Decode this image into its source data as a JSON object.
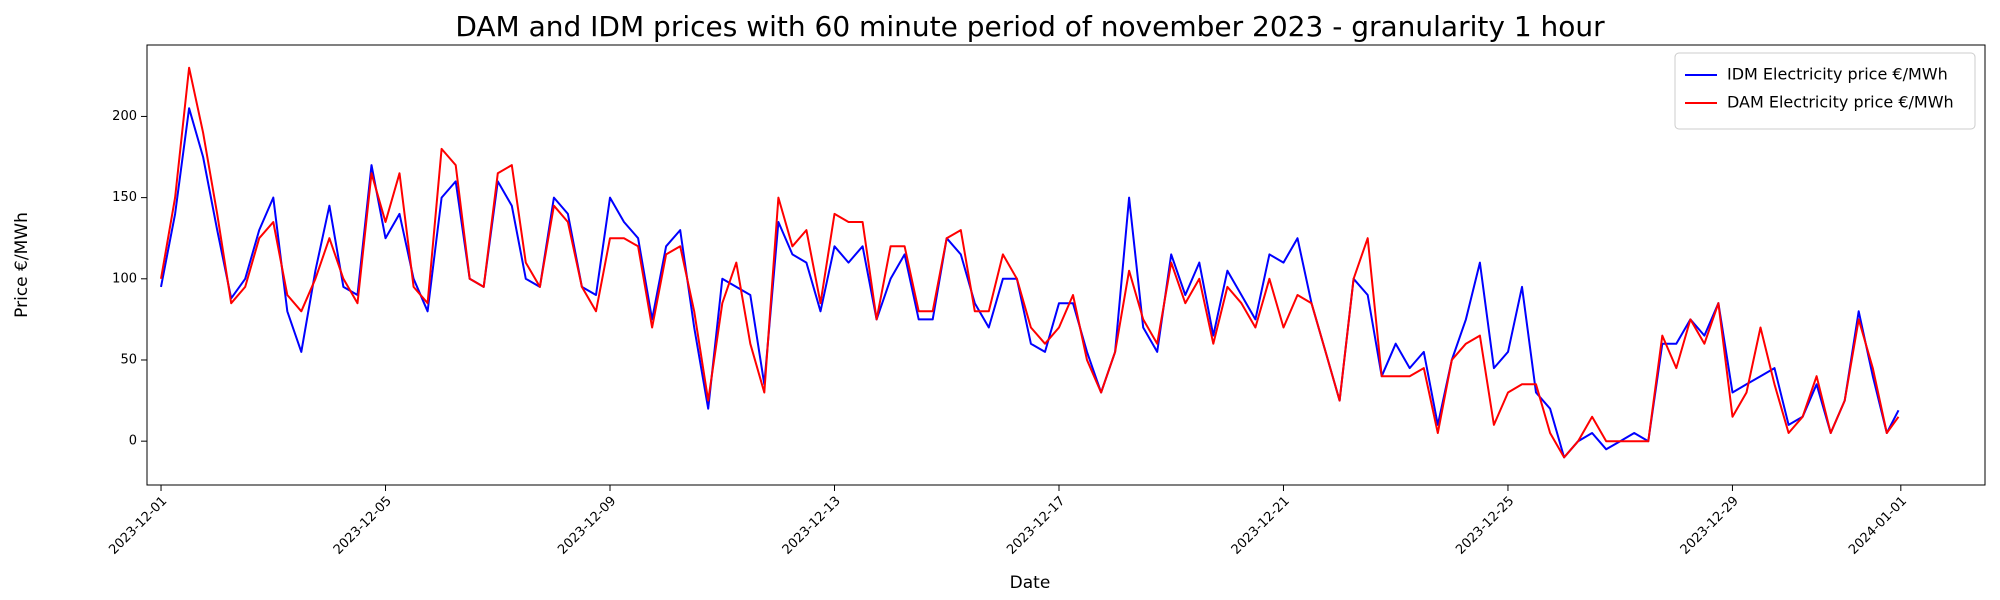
{
  "chart_data": {
    "type": "line",
    "title": "DAM and IDM prices with 60 minute period of november 2023  - granularity 1 hour",
    "x_label": "Date",
    "y_label": "Price €/MWh",
    "x": [
      "2023-12-01T00:00",
      "2023-12-01T06:00",
      "2023-12-01T12:00",
      "2023-12-01T18:00",
      "2023-12-02T00:00",
      "2023-12-02T06:00",
      "2023-12-02T12:00",
      "2023-12-02T18:00",
      "2023-12-03T00:00",
      "2023-12-03T06:00",
      "2023-12-03T12:00",
      "2023-12-03T18:00",
      "2023-12-04T00:00",
      "2023-12-04T06:00",
      "2023-12-04T12:00",
      "2023-12-04T18:00",
      "2023-12-05T00:00",
      "2023-12-05T06:00",
      "2023-12-05T12:00",
      "2023-12-05T18:00",
      "2023-12-06T00:00",
      "2023-12-06T06:00",
      "2023-12-06T12:00",
      "2023-12-06T18:00",
      "2023-12-07T00:00",
      "2023-12-07T06:00",
      "2023-12-07T12:00",
      "2023-12-07T18:00",
      "2023-12-08T00:00",
      "2023-12-08T06:00",
      "2023-12-08T12:00",
      "2023-12-08T18:00",
      "2023-12-09T00:00",
      "2023-12-09T06:00",
      "2023-12-09T12:00",
      "2023-12-09T18:00",
      "2023-12-10T00:00",
      "2023-12-10T06:00",
      "2023-12-10T12:00",
      "2023-12-10T18:00",
      "2023-12-11T00:00",
      "2023-12-11T06:00",
      "2023-12-11T12:00",
      "2023-12-11T18:00",
      "2023-12-12T00:00",
      "2023-12-12T06:00",
      "2023-12-12T12:00",
      "2023-12-12T18:00",
      "2023-12-13T00:00",
      "2023-12-13T06:00",
      "2023-12-13T12:00",
      "2023-12-13T18:00",
      "2023-12-14T00:00",
      "2023-12-14T06:00",
      "2023-12-14T12:00",
      "2023-12-14T18:00",
      "2023-12-15T00:00",
      "2023-12-15T06:00",
      "2023-12-15T12:00",
      "2023-12-15T18:00",
      "2023-12-16T00:00",
      "2023-12-16T06:00",
      "2023-12-16T12:00",
      "2023-12-16T18:00",
      "2023-12-17T00:00",
      "2023-12-17T06:00",
      "2023-12-17T12:00",
      "2023-12-17T18:00",
      "2023-12-18T00:00",
      "2023-12-18T06:00",
      "2023-12-18T12:00",
      "2023-12-18T18:00",
      "2023-12-19T00:00",
      "2023-12-19T06:00",
      "2023-12-19T12:00",
      "2023-12-19T18:00",
      "2023-12-20T00:00",
      "2023-12-20T06:00",
      "2023-12-20T12:00",
      "2023-12-20T18:00",
      "2023-12-21T00:00",
      "2023-12-21T06:00",
      "2023-12-21T12:00",
      "2023-12-21T18:00",
      "2023-12-22T00:00",
      "2023-12-22T06:00",
      "2023-12-22T12:00",
      "2023-12-22T18:00",
      "2023-12-23T00:00",
      "2023-12-23T06:00",
      "2023-12-23T12:00",
      "2023-12-23T18:00",
      "2023-12-24T00:00",
      "2023-12-24T06:00",
      "2023-12-24T12:00",
      "2023-12-24T18:00",
      "2023-12-25T00:00",
      "2023-12-25T06:00",
      "2023-12-25T12:00",
      "2023-12-25T18:00",
      "2023-12-26T00:00",
      "2023-12-26T06:00",
      "2023-12-26T12:00",
      "2023-12-26T18:00",
      "2023-12-27T00:00",
      "2023-12-27T06:00",
      "2023-12-27T12:00",
      "2023-12-27T18:00",
      "2023-12-28T00:00",
      "2023-12-28T06:00",
      "2023-12-28T12:00",
      "2023-12-28T18:00",
      "2023-12-29T00:00",
      "2023-12-29T06:00",
      "2023-12-29T12:00",
      "2023-12-29T18:00",
      "2023-12-30T00:00",
      "2023-12-30T06:00",
      "2023-12-30T12:00",
      "2023-12-30T18:00",
      "2023-12-31T00:00",
      "2023-12-31T06:00",
      "2023-12-31T12:00",
      "2023-12-31T18:00",
      "2023-12-31T23:00"
    ],
    "series": [
      {
        "name": "IDM Electricity price €/MWh",
        "color": "#0000ff",
        "values": [
          95,
          140,
          205,
          175,
          130,
          88,
          100,
          130,
          150,
          80,
          55,
          105,
          145,
          95,
          90,
          170,
          125,
          140,
          100,
          80,
          150,
          160,
          100,
          95,
          160,
          145,
          100,
          95,
          150,
          140,
          95,
          90,
          150,
          135,
          125,
          75,
          120,
          130,
          70,
          20,
          100,
          95,
          90,
          35,
          135,
          115,
          110,
          80,
          120,
          110,
          120,
          75,
          100,
          115,
          75,
          75,
          125,
          115,
          85,
          70,
          100,
          100,
          60,
          55,
          85,
          85,
          55,
          30,
          55,
          150,
          70,
          55,
          115,
          90,
          110,
          65,
          105,
          90,
          75,
          115,
          110,
          125,
          85,
          55,
          25,
          100,
          90,
          40,
          60,
          45,
          55,
          10,
          50,
          75,
          110,
          45,
          55,
          95,
          30,
          20,
          -10,
          0,
          5,
          -5,
          0,
          5,
          0,
          60,
          60,
          75,
          65,
          85,
          30,
          35,
          40,
          45,
          10,
          15,
          35,
          5,
          25,
          80,
          40,
          5,
          19
        ]
      },
      {
        "name": "DAM Electricity price €/MWh",
        "color": "#ff0000",
        "values": [
          100,
          150,
          230,
          190,
          140,
          85,
          95,
          125,
          135,
          90,
          80,
          100,
          125,
          100,
          85,
          165,
          135,
          165,
          95,
          85,
          180,
          170,
          100,
          95,
          165,
          170,
          110,
          95,
          145,
          135,
          95,
          80,
          125,
          125,
          120,
          70,
          115,
          120,
          80,
          25,
          85,
          110,
          60,
          30,
          150,
          120,
          130,
          85,
          140,
          135,
          135,
          75,
          120,
          120,
          80,
          80,
          125,
          130,
          80,
          80,
          115,
          100,
          70,
          60,
          70,
          90,
          50,
          30,
          55,
          105,
          75,
          60,
          110,
          85,
          100,
          60,
          95,
          85,
          70,
          100,
          70,
          90,
          85,
          55,
          25,
          100,
          125,
          40,
          40,
          40,
          45,
          5,
          50,
          60,
          65,
          10,
          30,
          35,
          35,
          5,
          -10,
          0,
          15,
          0,
          0,
          0,
          0,
          65,
          45,
          75,
          60,
          85,
          15,
          30,
          70,
          35,
          5,
          15,
          40,
          5,
          25,
          75,
          45,
          5,
          15
        ]
      }
    ],
    "xlim": [
      "2023-11-30T18:00",
      "2024-01-02T12:00"
    ],
    "xticks": [
      "2023-12-01",
      "2023-12-05",
      "2023-12-09",
      "2023-12-13",
      "2023-12-17",
      "2023-12-21",
      "2023-12-25",
      "2023-12-29",
      "2024-01-01"
    ],
    "ylim": [
      -27,
      244
    ],
    "yticks": [
      0,
      50,
      100,
      150,
      200
    ],
    "grid": false,
    "legend": "upper right"
  }
}
